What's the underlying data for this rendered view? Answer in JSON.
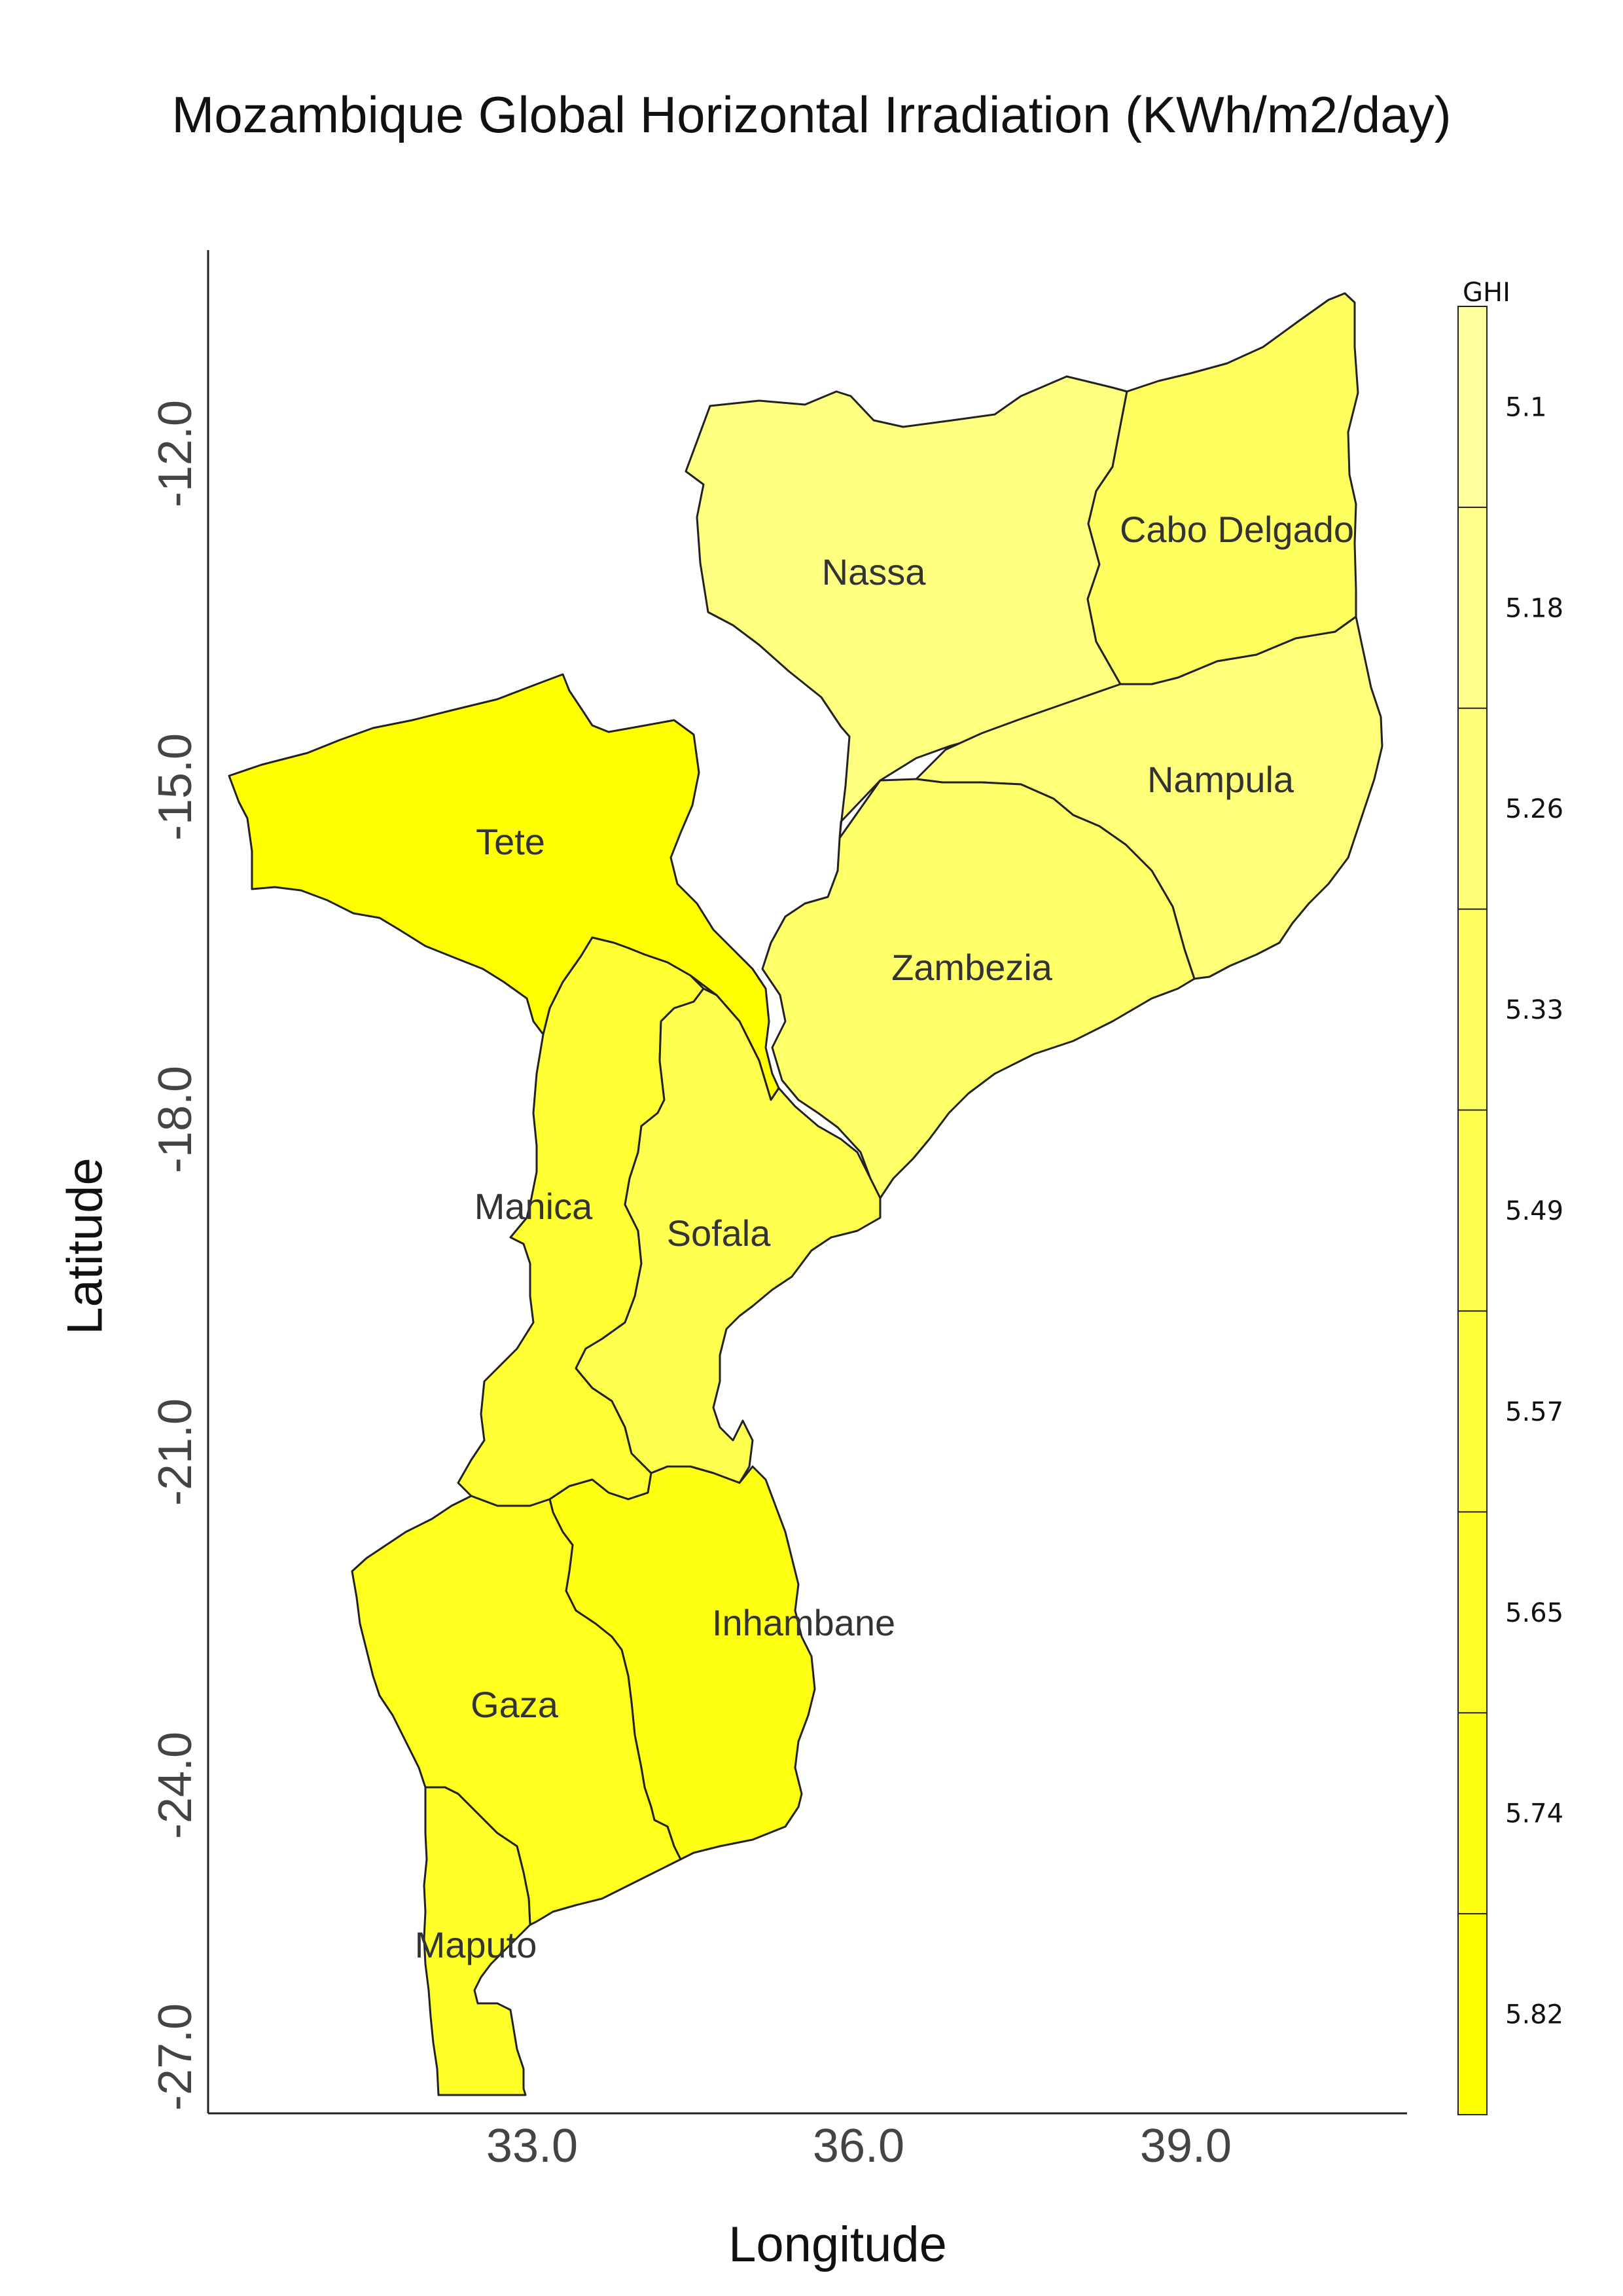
{
  "title": "Mozambique Global Horizontal Irradiation (KWh/m2/day)",
  "axes": {
    "xlabel": "Longitude",
    "ylabel": "Latitude",
    "x_ticks": [
      "33.0",
      "36.0",
      "39.0"
    ],
    "y_ticks": [
      "-12.0",
      "-15.0",
      "-18.0",
      "-21.0",
      "-24.0",
      "-27.0"
    ]
  },
  "legend": {
    "title": "GHI",
    "labels": [
      "5.1",
      "5.18",
      "5.26",
      "5.33",
      "5.49",
      "5.57",
      "5.65",
      "5.74",
      "5.82"
    ],
    "colors": [
      "#FFFF9E",
      "#FFFF8A",
      "#FFFF77",
      "#FFFF63",
      "#FFFF4F",
      "#FFFF3C",
      "#FFFF28",
      "#FFFF14",
      "#FFFF00"
    ]
  },
  "regions": [
    {
      "name": "Nassa",
      "color": "#FFFF80"
    },
    {
      "name": "Cabo Delgado",
      "color": "#FFFF60"
    },
    {
      "name": "Nampula",
      "color": "#FFFF7A"
    },
    {
      "name": "Zambezia",
      "color": "#FFFF68"
    },
    {
      "name": "Tete",
      "color": "#FFFF00"
    },
    {
      "name": "Manica",
      "color": "#FFFF33"
    },
    {
      "name": "Sofala",
      "color": "#FFFF50"
    },
    {
      "name": "Inhambane",
      "color": "#FFFF12"
    },
    {
      "name": "Gaza",
      "color": "#FFFF1E"
    },
    {
      "name": "Maputo",
      "color": "#FFFF2A"
    }
  ]
}
